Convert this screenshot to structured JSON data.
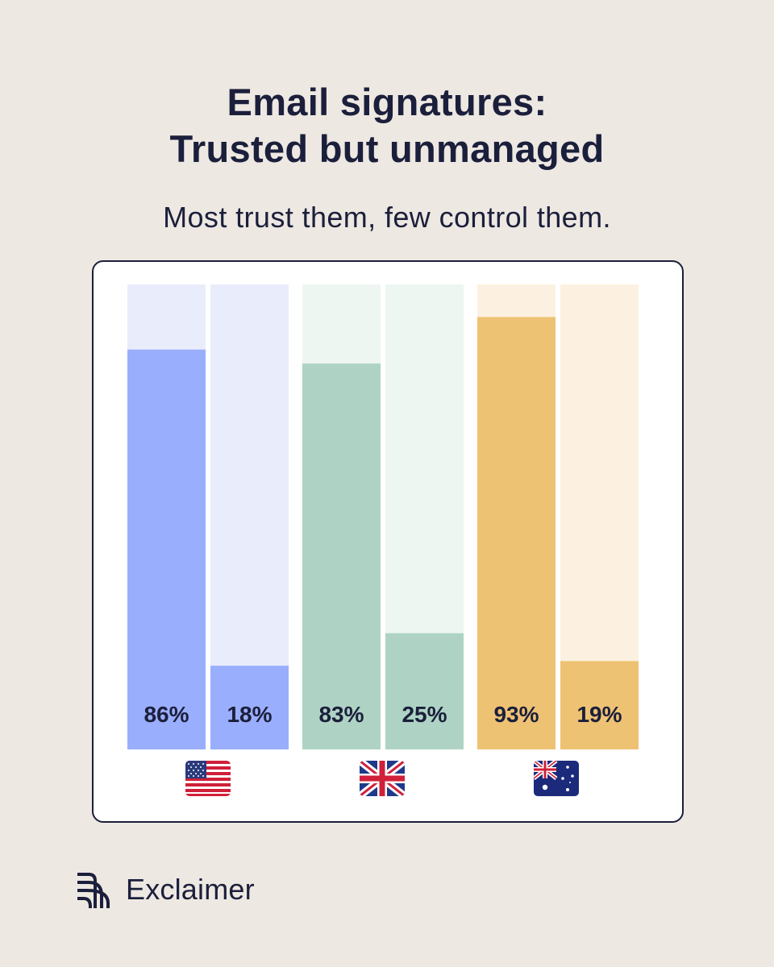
{
  "header": {
    "title_line1": "Email signatures:",
    "title_line2": "Trusted but unmanaged",
    "subtitle": "Most trust them, few control them."
  },
  "chart_data": {
    "type": "bar",
    "ylim": [
      0,
      100
    ],
    "grid": false,
    "groups": [
      {
        "flag": "us-flag-icon",
        "color": "#9aaefe",
        "track_color": "#e9ecfb",
        "values": [
          86,
          18
        ],
        "labels": [
          "86%",
          "18%"
        ]
      },
      {
        "flag": "uk-flag-icon",
        "color": "#aed3c4",
        "track_color": "#eef6f1",
        "values": [
          83,
          25
        ],
        "labels": [
          "83%",
          "25%"
        ]
      },
      {
        "flag": "australia-flag-icon",
        "color": "#eec273",
        "track_color": "#fcf1e0",
        "values": [
          93,
          19
        ],
        "labels": [
          "93%",
          "19%"
        ]
      }
    ]
  },
  "brand": {
    "name": "Exclaimer",
    "logo_icon": "exclaimer-logo-icon"
  }
}
